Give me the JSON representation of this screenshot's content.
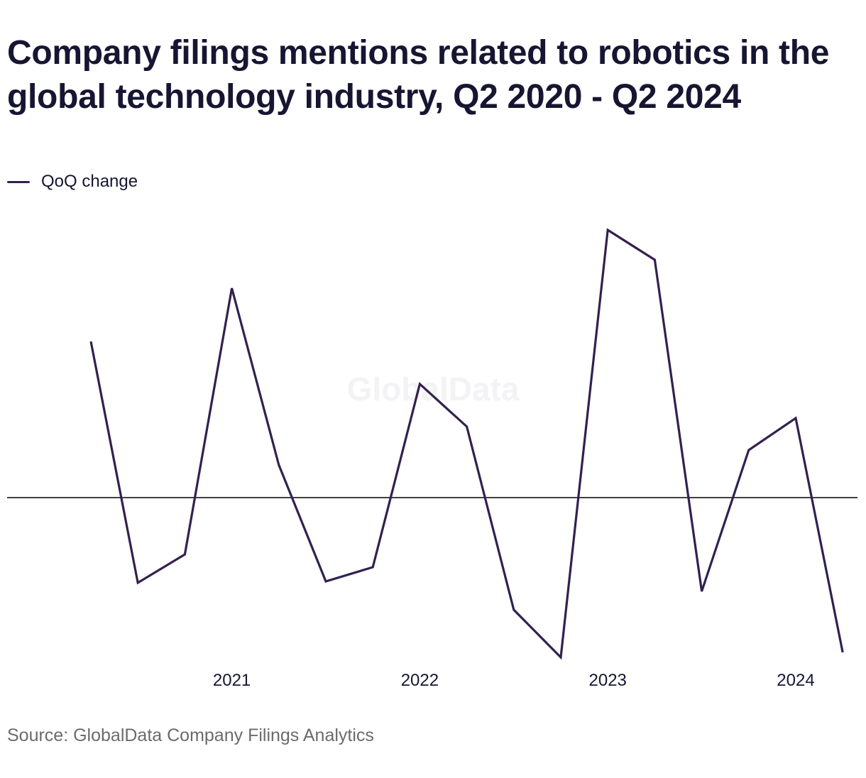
{
  "title": "Company filings mentions related to robotics in the global technology industry, Q2 2020 - Q2 2024",
  "source": "Source: GlobalData Company Filings Analytics",
  "watermark": "GlobalData",
  "colors": {
    "line": "#33204f",
    "zero_line": "#000000",
    "text": "#161633",
    "source": "#6b6b6b"
  },
  "chart_data": {
    "type": "line",
    "x": [
      "Q2 2020",
      "Q3 2020",
      "Q4 2020",
      "Q1 2021",
      "Q2 2021",
      "Q3 2021",
      "Q4 2021",
      "Q1 2022",
      "Q2 2022",
      "Q3 2022",
      "Q4 2022",
      "Q1 2023",
      "Q2 2023",
      "Q3 2023",
      "Q4 2023",
      "Q1 2024",
      "Q2 2024"
    ],
    "series": [
      {
        "name": "QoQ change",
        "values": [
          2.2,
          -1.2,
          -0.8,
          2.95,
          0.46,
          -1.18,
          -0.98,
          1.6,
          1.0,
          -1.58,
          -2.25,
          3.77,
          3.35,
          -1.32,
          0.67,
          1.12,
          -2.18
        ]
      }
    ],
    "xticks": [
      {
        "label": "2021",
        "at": "Q1 2021"
      },
      {
        "label": "2022",
        "at": "Q1 2022"
      },
      {
        "label": "2023",
        "at": "Q1 2023"
      },
      {
        "label": "2024",
        "at": "Q1 2024"
      }
    ],
    "ylim": [
      -2.3,
      4.0
    ],
    "zero_line": true,
    "grid": false,
    "legend": "top-left"
  }
}
